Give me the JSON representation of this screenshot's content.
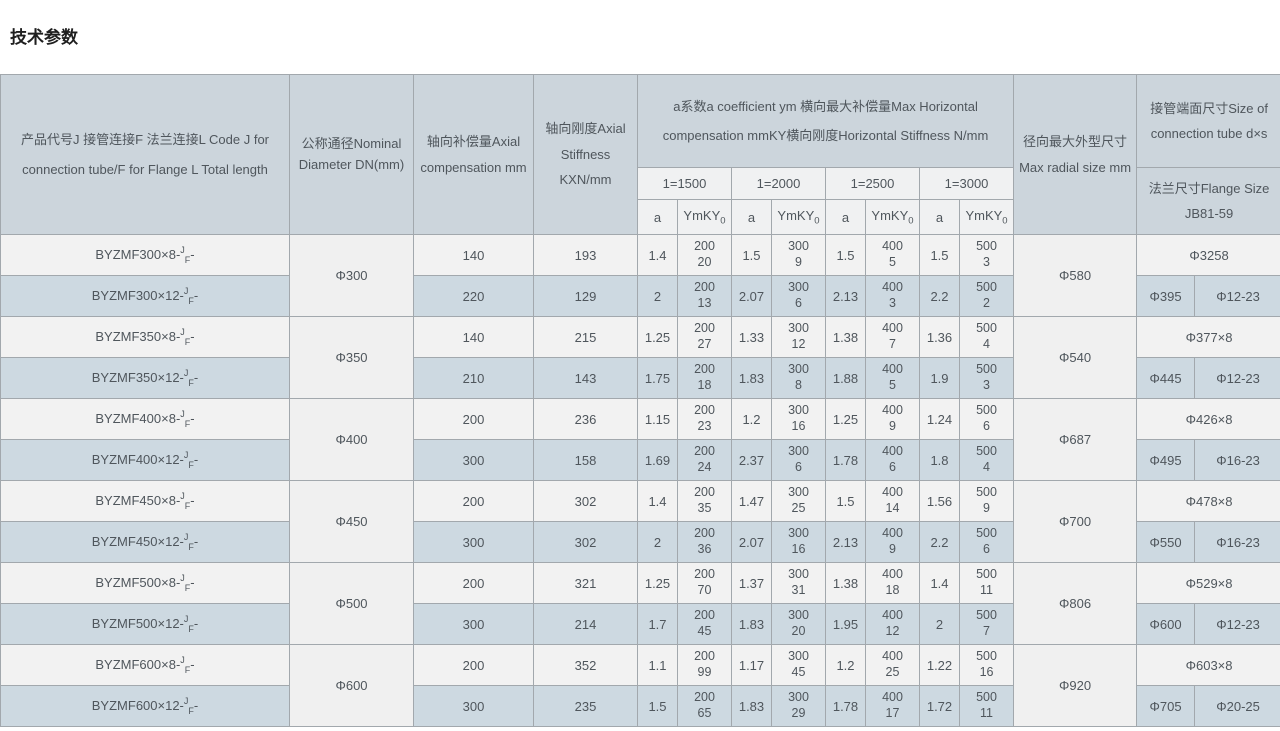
{
  "page_title": "技术参数",
  "colors": {
    "header_bg": "#ccd5dc",
    "subheader_bg": "#f0f1f2",
    "row_light": "#f2f2f2",
    "row_blue": "#cdd9e1",
    "merged_bg": "#f0f0f0",
    "border": "#a2a8ad",
    "text": "#4f565c"
  },
  "table": {
    "headers": {
      "product": "产品代号J 接管连接F 法兰连接L Code J for connection tube/F for Flange L Total length",
      "dn": "公称通径Nominal Diameter DN(mm)",
      "axial_compensation": "轴向补偿量Axial compensation mm",
      "axial_stiffness": "轴向刚度Axial Stiffness KXN/mm",
      "coefficient_group": "a系数a coefficient ym 横向最大补偿量Max Horizontal compensation mmKY横向刚度Horizontal Stiffness N/mm",
      "length_cols": [
        "1=1500",
        "1=2000",
        "1=2500",
        "1=3000"
      ],
      "a_label": "a",
      "ym_label": "YmKY",
      "ym_sub": "0",
      "radial": "径向最大外型尺寸 Max radial size mm",
      "tube_size": "接管端面尺寸Size of connection tube d×s",
      "flange_size": "法兰尺寸Flange Size JB81-59"
    },
    "groups": [
      {
        "dn": "Φ300",
        "radial": "Φ580",
        "tube": "Φ3258",
        "flange": "Φ395",
        "bolts": "Φ12-23",
        "rows": [
          {
            "code_base": "BYZMF300×8-",
            "code_sup": "J",
            "code_sub": "F",
            "code_tail": "-",
            "comp": "140",
            "stiff": "193",
            "coef": [
              [
                "1.4",
                "200",
                "20"
              ],
              [
                "1.5",
                "300",
                "9"
              ],
              [
                "1.5",
                "400",
                "5"
              ],
              [
                "1.5",
                "500",
                "3"
              ]
            ]
          },
          {
            "code_base": "BYZMF300×12-",
            "code_sup": "J",
            "code_sub": "F",
            "code_tail": "-",
            "comp": "220",
            "stiff": "129",
            "coef": [
              [
                "2",
                "200",
                "13"
              ],
              [
                "2.07",
                "300",
                "6"
              ],
              [
                "2.13",
                "400",
                "3"
              ],
              [
                "2.2",
                "500",
                "2"
              ]
            ]
          }
        ]
      },
      {
        "dn": "Φ350",
        "radial": "Φ540",
        "tube": "Φ377×8",
        "flange": "Φ445",
        "bolts": "Φ12-23",
        "rows": [
          {
            "code_base": "BYZMF350×8-",
            "code_sup": "J",
            "code_sub": "F",
            "code_tail": "-",
            "comp": "140",
            "stiff": "215",
            "coef": [
              [
                "1.25",
                "200",
                "27"
              ],
              [
                "1.33",
                "300",
                "12"
              ],
              [
                "1.38",
                "400",
                "7"
              ],
              [
                "1.36",
                "500",
                "4"
              ]
            ]
          },
          {
            "code_base": "BYZMF350×12-",
            "code_sup": "J",
            "code_sub": "F",
            "code_tail": "-",
            "comp": "210",
            "stiff": "143",
            "coef": [
              [
                "1.75",
                "200",
                "18"
              ],
              [
                "1.83",
                "300",
                "8"
              ],
              [
                "1.88",
                "400",
                "5"
              ],
              [
                "1.9",
                "500",
                "3"
              ]
            ]
          }
        ]
      },
      {
        "dn": "Φ400",
        "radial": "Φ687",
        "tube": "Φ426×8",
        "flange": "Φ495",
        "bolts": "Φ16-23",
        "rows": [
          {
            "code_base": "BYZMF400×8-",
            "code_sup": "J",
            "code_sub": "F",
            "code_tail": "-",
            "comp": "200",
            "stiff": "236",
            "coef": [
              [
                "1.15",
                "200",
                "23"
              ],
              [
                "1.2",
                "300",
                "16"
              ],
              [
                "1.25",
                "400",
                "9"
              ],
              [
                "1.24",
                "500",
                "6"
              ]
            ]
          },
          {
            "code_base": "BYZMF400×12-",
            "code_sup": "J",
            "code_sub": "F",
            "code_tail": "-",
            "comp": "300",
            "stiff": "158",
            "coef": [
              [
                "1.69",
                "200",
                "24"
              ],
              [
                "2.37",
                "300",
                "6"
              ],
              [
                "1.78",
                "400",
                "6"
              ],
              [
                "1.8",
                "500",
                "4"
              ]
            ]
          }
        ]
      },
      {
        "dn": "Φ450",
        "radial": "Φ700",
        "tube": "Φ478×8",
        "flange": "Φ550",
        "bolts": "Φ16-23",
        "rows": [
          {
            "code_base": "BYZMF450×8-",
            "code_sup": "J",
            "code_sub": "F",
            "code_tail": "-",
            "comp": "200",
            "stiff": "302",
            "coef": [
              [
                "1.4",
                "200",
                "35"
              ],
              [
                "1.47",
                "300",
                "25"
              ],
              [
                "1.5",
                "400",
                "14"
              ],
              [
                "1.56",
                "500",
                "9"
              ]
            ]
          },
          {
            "code_base": "BYZMF450×12-",
            "code_sup": "J",
            "code_sub": "F",
            "code_tail": "-",
            "comp": "300",
            "stiff": "302",
            "coef": [
              [
                "2",
                "200",
                "36"
              ],
              [
                "2.07",
                "300",
                "16"
              ],
              [
                "2.13",
                "400",
                "9"
              ],
              [
                "2.2",
                "500",
                "6"
              ]
            ]
          }
        ]
      },
      {
        "dn": "Φ500",
        "radial": "Φ806",
        "tube": "Φ529×8",
        "flange": "Φ600",
        "bolts": "Φ12-23",
        "rows": [
          {
            "code_base": "BYZMF500×8-",
            "code_sup": "J",
            "code_sub": "F",
            "code_tail": "-",
            "comp": "200",
            "stiff": "321",
            "coef": [
              [
                "1.25",
                "200",
                "70"
              ],
              [
                "1.37",
                "300",
                "31"
              ],
              [
                "1.38",
                "400",
                "18"
              ],
              [
                "1.4",
                "500",
                "11"
              ]
            ]
          },
          {
            "code_base": "BYZMF500×12-",
            "code_sup": "J",
            "code_sub": "F",
            "code_tail": "-",
            "comp": "300",
            "stiff": "214",
            "coef": [
              [
                "1.7",
                "200",
                "45"
              ],
              [
                "1.83",
                "300",
                "20"
              ],
              [
                "1.95",
                "400",
                "12"
              ],
              [
                "2",
                "500",
                "7"
              ]
            ]
          }
        ]
      },
      {
        "dn": "Φ600",
        "radial": "Φ920",
        "tube": "Φ603×8",
        "flange": "Φ705",
        "bolts": "Φ20-25",
        "rows": [
          {
            "code_base": "BYZMF600×8-",
            "code_sup": "J",
            "code_sub": "F",
            "code_tail": "-",
            "comp": "200",
            "stiff": "352",
            "coef": [
              [
                "1.1",
                "200",
                "99"
              ],
              [
                "1.17",
                "300",
                "45"
              ],
              [
                "1.2",
                "400",
                "25"
              ],
              [
                "1.22",
                "500",
                "16"
              ]
            ]
          },
          {
            "code_base": "BYZMF600×12-",
            "code_sup": "J",
            "code_sub": "F",
            "code_tail": "-",
            "comp": "300",
            "stiff": "235",
            "coef": [
              [
                "1.5",
                "200",
                "65"
              ],
              [
                "1.83",
                "300",
                "29"
              ],
              [
                "1.78",
                "400",
                "17"
              ],
              [
                "1.72",
                "500",
                "11"
              ]
            ]
          }
        ]
      }
    ]
  }
}
